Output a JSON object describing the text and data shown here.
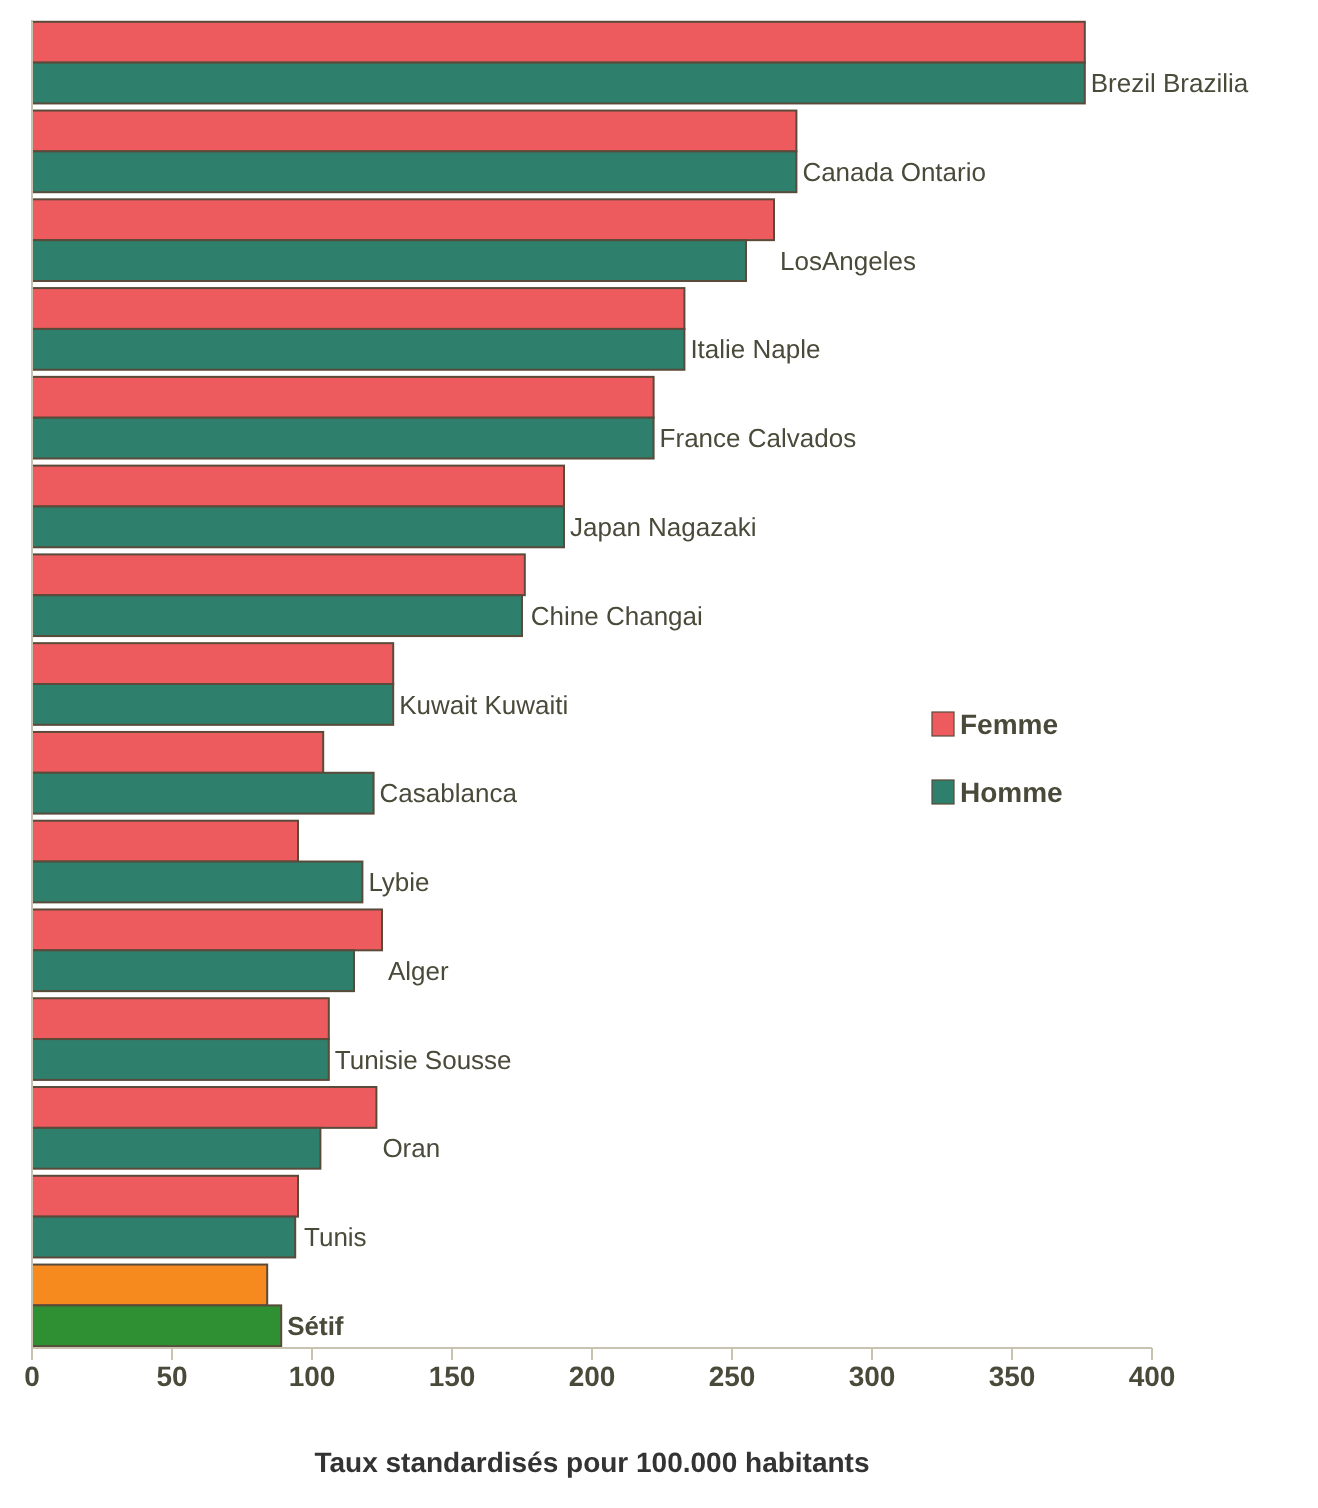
{
  "chart_data": {
    "type": "bar",
    "orientation": "horizontal",
    "xlabel": "Taux standardisés pour 100.000 habitants",
    "categories": [
      "Brezil Brazilia",
      "Canada Ontario",
      "LosAngeles",
      "Italie Naple",
      "France Calvados",
      "Japan Nagazaki",
      "Chine Changai",
      "Kuwait Kuwaiti",
      "Casablanca",
      "Lybie",
      "Alger",
      "Tunisie Sousse",
      "Oran",
      "Tunis",
      "Sétif"
    ],
    "series": [
      {
        "name": "Femme",
        "color": "#ee5b5e",
        "colors": [
          "#ee5b5e",
          "#ee5b5e",
          "#ee5b5e",
          "#ee5b5e",
          "#ee5b5e",
          "#ee5b5e",
          "#ee5b5e",
          "#ee5b5e",
          "#ee5b5e",
          "#ee5b5e",
          "#ee5b5e",
          "#ee5b5e",
          "#ee5b5e",
          "#ee5b5e",
          "#f78a1e"
        ],
        "values": [
          376,
          273,
          265,
          233,
          222,
          190,
          176,
          129,
          104,
          95,
          125,
          106,
          123,
          95,
          84
        ]
      },
      {
        "name": "Homme",
        "color": "#2e7f6c",
        "colors": [
          "#2e7f6c",
          "#2e7f6c",
          "#2e7f6c",
          "#2e7f6c",
          "#2e7f6c",
          "#2e7f6c",
          "#2e7f6c",
          "#2e7f6c",
          "#2e7f6c",
          "#2e7f6c",
          "#2e7f6c",
          "#2e7f6c",
          "#2e7f6c",
          "#2e7f6c",
          "#2f8f33"
        ],
        "values": [
          376,
          273,
          255,
          233,
          222,
          190,
          175,
          129,
          122,
          118,
          115,
          106,
          103,
          94,
          89
        ]
      }
    ],
    "xlim": [
      0,
      400
    ],
    "xticks": [
      0,
      50,
      100,
      150,
      200,
      250,
      300,
      350,
      400
    ],
    "legend": "right",
    "grid": false
  }
}
